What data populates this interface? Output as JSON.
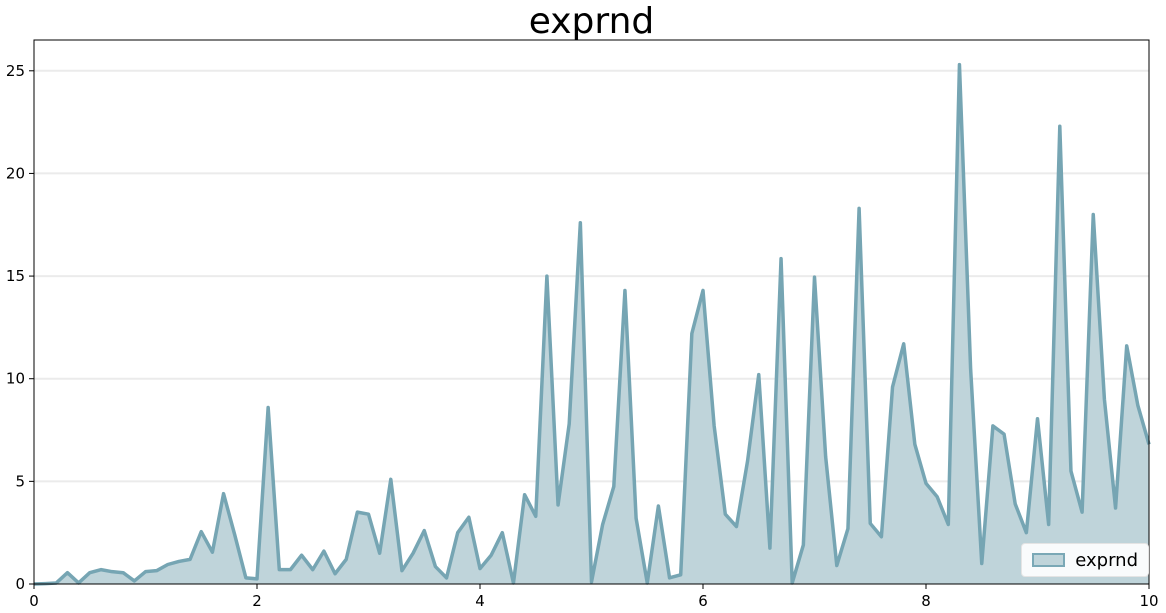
{
  "chart_data": {
    "type": "area",
    "title": "exprnd",
    "xlabel": "",
    "ylabel": "",
    "xlim": [
      0,
      10
    ],
    "ylim": [
      0,
      26.5
    ],
    "xticks": [
      0,
      2,
      4,
      6,
      8,
      10
    ],
    "yticks": [
      0,
      5,
      10,
      15,
      20,
      25
    ],
    "grid": "horizontal",
    "legend": "bottom-right",
    "colors": {
      "line": "#76a5b3",
      "fill": "#bfd4da"
    },
    "series": [
      {
        "name": "exprnd",
        "x": [
          0.0,
          0.1,
          0.2,
          0.3,
          0.4,
          0.5,
          0.6,
          0.7,
          0.8,
          0.9,
          1.0,
          1.1,
          1.2,
          1.3,
          1.4,
          1.5,
          1.6,
          1.7,
          1.8,
          1.9,
          2.0,
          2.1,
          2.2,
          2.3,
          2.4,
          2.5,
          2.6,
          2.7,
          2.8,
          2.9,
          3.0,
          3.1,
          3.2,
          3.3,
          3.4,
          3.5,
          3.6,
          3.7,
          3.8,
          3.9,
          4.0,
          4.1,
          4.2,
          4.3,
          4.4,
          4.5,
          4.6,
          4.7,
          4.8,
          4.9,
          5.0,
          5.1,
          5.2,
          5.3,
          5.4,
          5.5,
          5.6,
          5.7,
          5.8,
          5.9,
          6.0,
          6.1,
          6.2,
          6.3,
          6.4,
          6.5,
          6.6,
          6.7,
          6.8,
          6.9,
          7.0,
          7.1,
          7.2,
          7.3,
          7.4,
          7.5,
          7.6,
          7.7,
          7.8,
          7.9,
          8.0,
          8.1,
          8.2,
          8.3,
          8.4,
          8.5,
          8.6,
          8.7,
          8.8,
          8.9,
          9.0,
          9.1,
          9.2,
          9.3,
          9.4,
          9.5,
          9.6,
          9.7,
          9.8,
          9.9,
          10.0
        ],
        "values": [
          0.0,
          0.02,
          0.05,
          0.55,
          0.05,
          0.55,
          0.7,
          0.6,
          0.55,
          0.15,
          0.6,
          0.65,
          0.95,
          1.1,
          1.2,
          2.55,
          1.55,
          4.4,
          2.4,
          0.3,
          0.25,
          8.6,
          0.7,
          0.7,
          1.4,
          0.7,
          1.6,
          0.5,
          1.2,
          3.5,
          3.4,
          1.5,
          5.1,
          0.65,
          1.5,
          2.6,
          0.85,
          0.3,
          2.5,
          3.25,
          0.75,
          1.4,
          2.5,
          0.05,
          4.35,
          3.3,
          15.0,
          3.85,
          7.8,
          17.6,
          0.1,
          2.9,
          4.75,
          14.3,
          3.2,
          0.05,
          3.8,
          0.3,
          0.45,
          12.2,
          14.3,
          7.7,
          3.4,
          2.8,
          6.0,
          10.2,
          1.75,
          15.85,
          0.05,
          1.9,
          14.95,
          6.2,
          0.9,
          2.7,
          18.3,
          2.95,
          2.3,
          9.6,
          11.7,
          6.8,
          4.9,
          4.25,
          2.9,
          25.3,
          10.5,
          1.0,
          7.7,
          7.3,
          3.9,
          2.5,
          8.05,
          2.9,
          22.3,
          5.5,
          3.5,
          18.0,
          9.0,
          3.7,
          11.6,
          8.7,
          6.8
        ]
      }
    ]
  }
}
